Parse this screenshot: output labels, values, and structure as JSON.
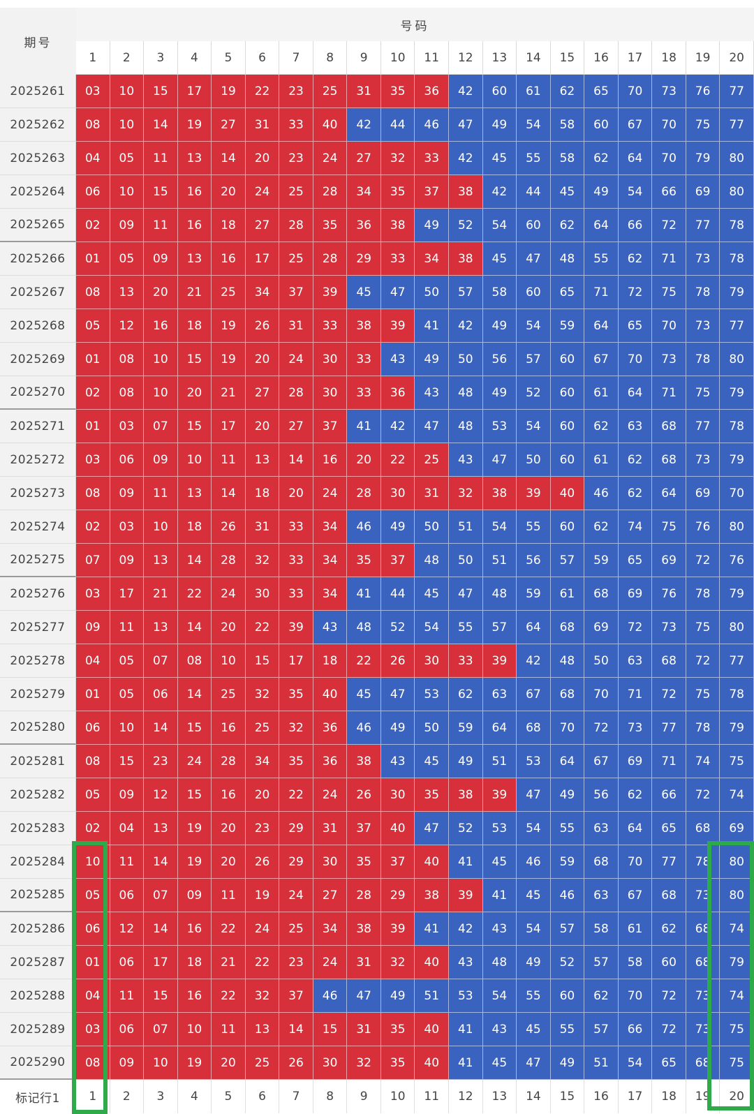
{
  "header": {
    "issue_label": "期号",
    "numbers_label": "号码",
    "columns": [
      "1",
      "2",
      "3",
      "4",
      "5",
      "6",
      "7",
      "8",
      "9",
      "10",
      "11",
      "12",
      "13",
      "14",
      "15",
      "16",
      "17",
      "18",
      "19",
      "20"
    ]
  },
  "colors": {
    "red": "#d7303a",
    "blue": "#3a63bf",
    "highlight": "#2eaa4a"
  },
  "rows": [
    {
      "issue": "2025261",
      "nums": [
        "03",
        "10",
        "15",
        "17",
        "19",
        "22",
        "23",
        "25",
        "31",
        "35",
        "36",
        "42",
        "60",
        "61",
        "62",
        "65",
        "70",
        "73",
        "76",
        "77"
      ],
      "split": 11
    },
    {
      "issue": "2025262",
      "nums": [
        "08",
        "10",
        "14",
        "19",
        "27",
        "31",
        "33",
        "40",
        "42",
        "44",
        "46",
        "47",
        "49",
        "54",
        "58",
        "60",
        "67",
        "70",
        "75",
        "77"
      ],
      "split": 8
    },
    {
      "issue": "2025263",
      "nums": [
        "04",
        "05",
        "11",
        "13",
        "14",
        "20",
        "23",
        "24",
        "27",
        "32",
        "33",
        "42",
        "45",
        "55",
        "58",
        "62",
        "64",
        "70",
        "79",
        "80"
      ],
      "split": 11
    },
    {
      "issue": "2025264",
      "nums": [
        "06",
        "10",
        "15",
        "16",
        "20",
        "24",
        "25",
        "28",
        "34",
        "35",
        "37",
        "38",
        "42",
        "44",
        "45",
        "49",
        "54",
        "66",
        "69",
        "80"
      ],
      "split": 12
    },
    {
      "issue": "2025265",
      "nums": [
        "02",
        "09",
        "11",
        "16",
        "18",
        "27",
        "28",
        "35",
        "36",
        "38",
        "49",
        "52",
        "54",
        "60",
        "62",
        "64",
        "66",
        "72",
        "77",
        "78"
      ],
      "split": 10
    },
    {
      "issue": "2025266",
      "nums": [
        "01",
        "05",
        "09",
        "13",
        "16",
        "17",
        "25",
        "28",
        "29",
        "33",
        "34",
        "38",
        "45",
        "47",
        "48",
        "55",
        "62",
        "71",
        "73",
        "78"
      ],
      "split": 12
    },
    {
      "issue": "2025267",
      "nums": [
        "08",
        "13",
        "20",
        "21",
        "25",
        "34",
        "37",
        "39",
        "45",
        "47",
        "50",
        "57",
        "58",
        "60",
        "65",
        "71",
        "72",
        "75",
        "78",
        "79"
      ],
      "split": 8
    },
    {
      "issue": "2025268",
      "nums": [
        "05",
        "12",
        "16",
        "18",
        "19",
        "26",
        "31",
        "33",
        "38",
        "39",
        "41",
        "42",
        "49",
        "54",
        "59",
        "64",
        "65",
        "70",
        "73",
        "77"
      ],
      "split": 10
    },
    {
      "issue": "2025269",
      "nums": [
        "01",
        "08",
        "10",
        "15",
        "19",
        "20",
        "24",
        "30",
        "33",
        "43",
        "49",
        "50",
        "56",
        "57",
        "60",
        "67",
        "70",
        "73",
        "78",
        "80"
      ],
      "split": 9
    },
    {
      "issue": "2025270",
      "nums": [
        "02",
        "08",
        "10",
        "20",
        "21",
        "27",
        "28",
        "30",
        "33",
        "36",
        "43",
        "48",
        "49",
        "52",
        "60",
        "61",
        "64",
        "71",
        "75",
        "79"
      ],
      "split": 10
    },
    {
      "issue": "2025271",
      "nums": [
        "01",
        "03",
        "07",
        "15",
        "17",
        "20",
        "27",
        "37",
        "41",
        "42",
        "47",
        "48",
        "53",
        "54",
        "60",
        "62",
        "63",
        "68",
        "77",
        "78"
      ],
      "split": 8
    },
    {
      "issue": "2025272",
      "nums": [
        "03",
        "06",
        "09",
        "10",
        "11",
        "13",
        "14",
        "16",
        "20",
        "22",
        "25",
        "43",
        "47",
        "50",
        "60",
        "61",
        "62",
        "68",
        "73",
        "79"
      ],
      "split": 11
    },
    {
      "issue": "2025273",
      "nums": [
        "08",
        "09",
        "11",
        "13",
        "14",
        "18",
        "20",
        "24",
        "28",
        "30",
        "31",
        "32",
        "38",
        "39",
        "40",
        "46",
        "62",
        "64",
        "69",
        "70"
      ],
      "split": 15
    },
    {
      "issue": "2025274",
      "nums": [
        "02",
        "03",
        "10",
        "18",
        "26",
        "31",
        "33",
        "34",
        "46",
        "49",
        "50",
        "51",
        "54",
        "55",
        "60",
        "62",
        "74",
        "75",
        "76",
        "80"
      ],
      "split": 8
    },
    {
      "issue": "2025275",
      "nums": [
        "07",
        "09",
        "13",
        "14",
        "28",
        "32",
        "33",
        "34",
        "35",
        "37",
        "48",
        "50",
        "51",
        "56",
        "57",
        "59",
        "65",
        "69",
        "72",
        "76"
      ],
      "split": 10
    },
    {
      "issue": "2025276",
      "nums": [
        "03",
        "17",
        "21",
        "22",
        "24",
        "30",
        "33",
        "34",
        "41",
        "44",
        "45",
        "47",
        "48",
        "59",
        "61",
        "68",
        "69",
        "76",
        "78",
        "79"
      ],
      "split": 8
    },
    {
      "issue": "2025277",
      "nums": [
        "09",
        "11",
        "13",
        "14",
        "20",
        "22",
        "39",
        "43",
        "48",
        "52",
        "54",
        "55",
        "57",
        "64",
        "68",
        "69",
        "72",
        "73",
        "75",
        "80"
      ],
      "split": 7
    },
    {
      "issue": "2025278",
      "nums": [
        "04",
        "05",
        "07",
        "08",
        "10",
        "15",
        "17",
        "18",
        "22",
        "26",
        "30",
        "33",
        "39",
        "42",
        "48",
        "50",
        "63",
        "68",
        "72",
        "77"
      ],
      "split": 13
    },
    {
      "issue": "2025279",
      "nums": [
        "01",
        "05",
        "06",
        "14",
        "25",
        "32",
        "35",
        "40",
        "45",
        "47",
        "53",
        "62",
        "63",
        "67",
        "68",
        "70",
        "71",
        "72",
        "75",
        "78"
      ],
      "split": 8
    },
    {
      "issue": "2025280",
      "nums": [
        "06",
        "10",
        "14",
        "15",
        "16",
        "25",
        "32",
        "36",
        "46",
        "49",
        "50",
        "59",
        "64",
        "68",
        "70",
        "72",
        "73",
        "77",
        "78",
        "79"
      ],
      "split": 8
    },
    {
      "issue": "2025281",
      "nums": [
        "08",
        "15",
        "23",
        "24",
        "28",
        "34",
        "35",
        "36",
        "38",
        "43",
        "45",
        "49",
        "51",
        "53",
        "64",
        "67",
        "69",
        "71",
        "74",
        "75"
      ],
      "split": 9
    },
    {
      "issue": "2025282",
      "nums": [
        "05",
        "09",
        "12",
        "15",
        "16",
        "20",
        "22",
        "24",
        "26",
        "30",
        "35",
        "38",
        "39",
        "47",
        "49",
        "56",
        "62",
        "66",
        "72",
        "74"
      ],
      "split": 13
    },
    {
      "issue": "2025283",
      "nums": [
        "02",
        "04",
        "13",
        "19",
        "20",
        "23",
        "29",
        "31",
        "37",
        "40",
        "47",
        "52",
        "53",
        "54",
        "55",
        "63",
        "64",
        "65",
        "68",
        "69"
      ],
      "split": 10
    },
    {
      "issue": "2025284",
      "nums": [
        "10",
        "11",
        "14",
        "19",
        "20",
        "26",
        "29",
        "30",
        "35",
        "37",
        "40",
        "41",
        "45",
        "46",
        "59",
        "68",
        "70",
        "77",
        "78",
        "80"
      ],
      "split": 11
    },
    {
      "issue": "2025285",
      "nums": [
        "05",
        "06",
        "07",
        "09",
        "11",
        "19",
        "24",
        "27",
        "28",
        "29",
        "38",
        "39",
        "41",
        "45",
        "46",
        "63",
        "67",
        "68",
        "73",
        "80"
      ],
      "split": 12
    },
    {
      "issue": "2025286",
      "nums": [
        "06",
        "12",
        "14",
        "16",
        "22",
        "24",
        "25",
        "34",
        "38",
        "39",
        "41",
        "42",
        "43",
        "54",
        "57",
        "58",
        "61",
        "62",
        "68",
        "74"
      ],
      "split": 10
    },
    {
      "issue": "2025287",
      "nums": [
        "01",
        "06",
        "17",
        "18",
        "21",
        "22",
        "23",
        "24",
        "31",
        "32",
        "40",
        "43",
        "48",
        "49",
        "52",
        "57",
        "58",
        "60",
        "68",
        "79"
      ],
      "split": 11
    },
    {
      "issue": "2025288",
      "nums": [
        "04",
        "11",
        "15",
        "16",
        "22",
        "32",
        "37",
        "46",
        "47",
        "49",
        "51",
        "53",
        "54",
        "55",
        "60",
        "62",
        "70",
        "72",
        "73",
        "74"
      ],
      "split": 7
    },
    {
      "issue": "2025289",
      "nums": [
        "03",
        "06",
        "07",
        "10",
        "11",
        "13",
        "14",
        "15",
        "31",
        "35",
        "40",
        "41",
        "43",
        "45",
        "55",
        "57",
        "66",
        "72",
        "73",
        "75"
      ],
      "split": 11
    },
    {
      "issue": "2025290",
      "nums": [
        "08",
        "09",
        "10",
        "19",
        "20",
        "25",
        "26",
        "30",
        "32",
        "35",
        "40",
        "41",
        "45",
        "47",
        "49",
        "51",
        "54",
        "65",
        "68",
        "75"
      ],
      "split": 11
    }
  ],
  "footer": {
    "label": "标记行1",
    "columns": [
      "1",
      "2",
      "3",
      "4",
      "5",
      "6",
      "7",
      "8",
      "9",
      "10",
      "11",
      "12",
      "13",
      "14",
      "15",
      "16",
      "17",
      "18",
      "19",
      "20"
    ]
  }
}
